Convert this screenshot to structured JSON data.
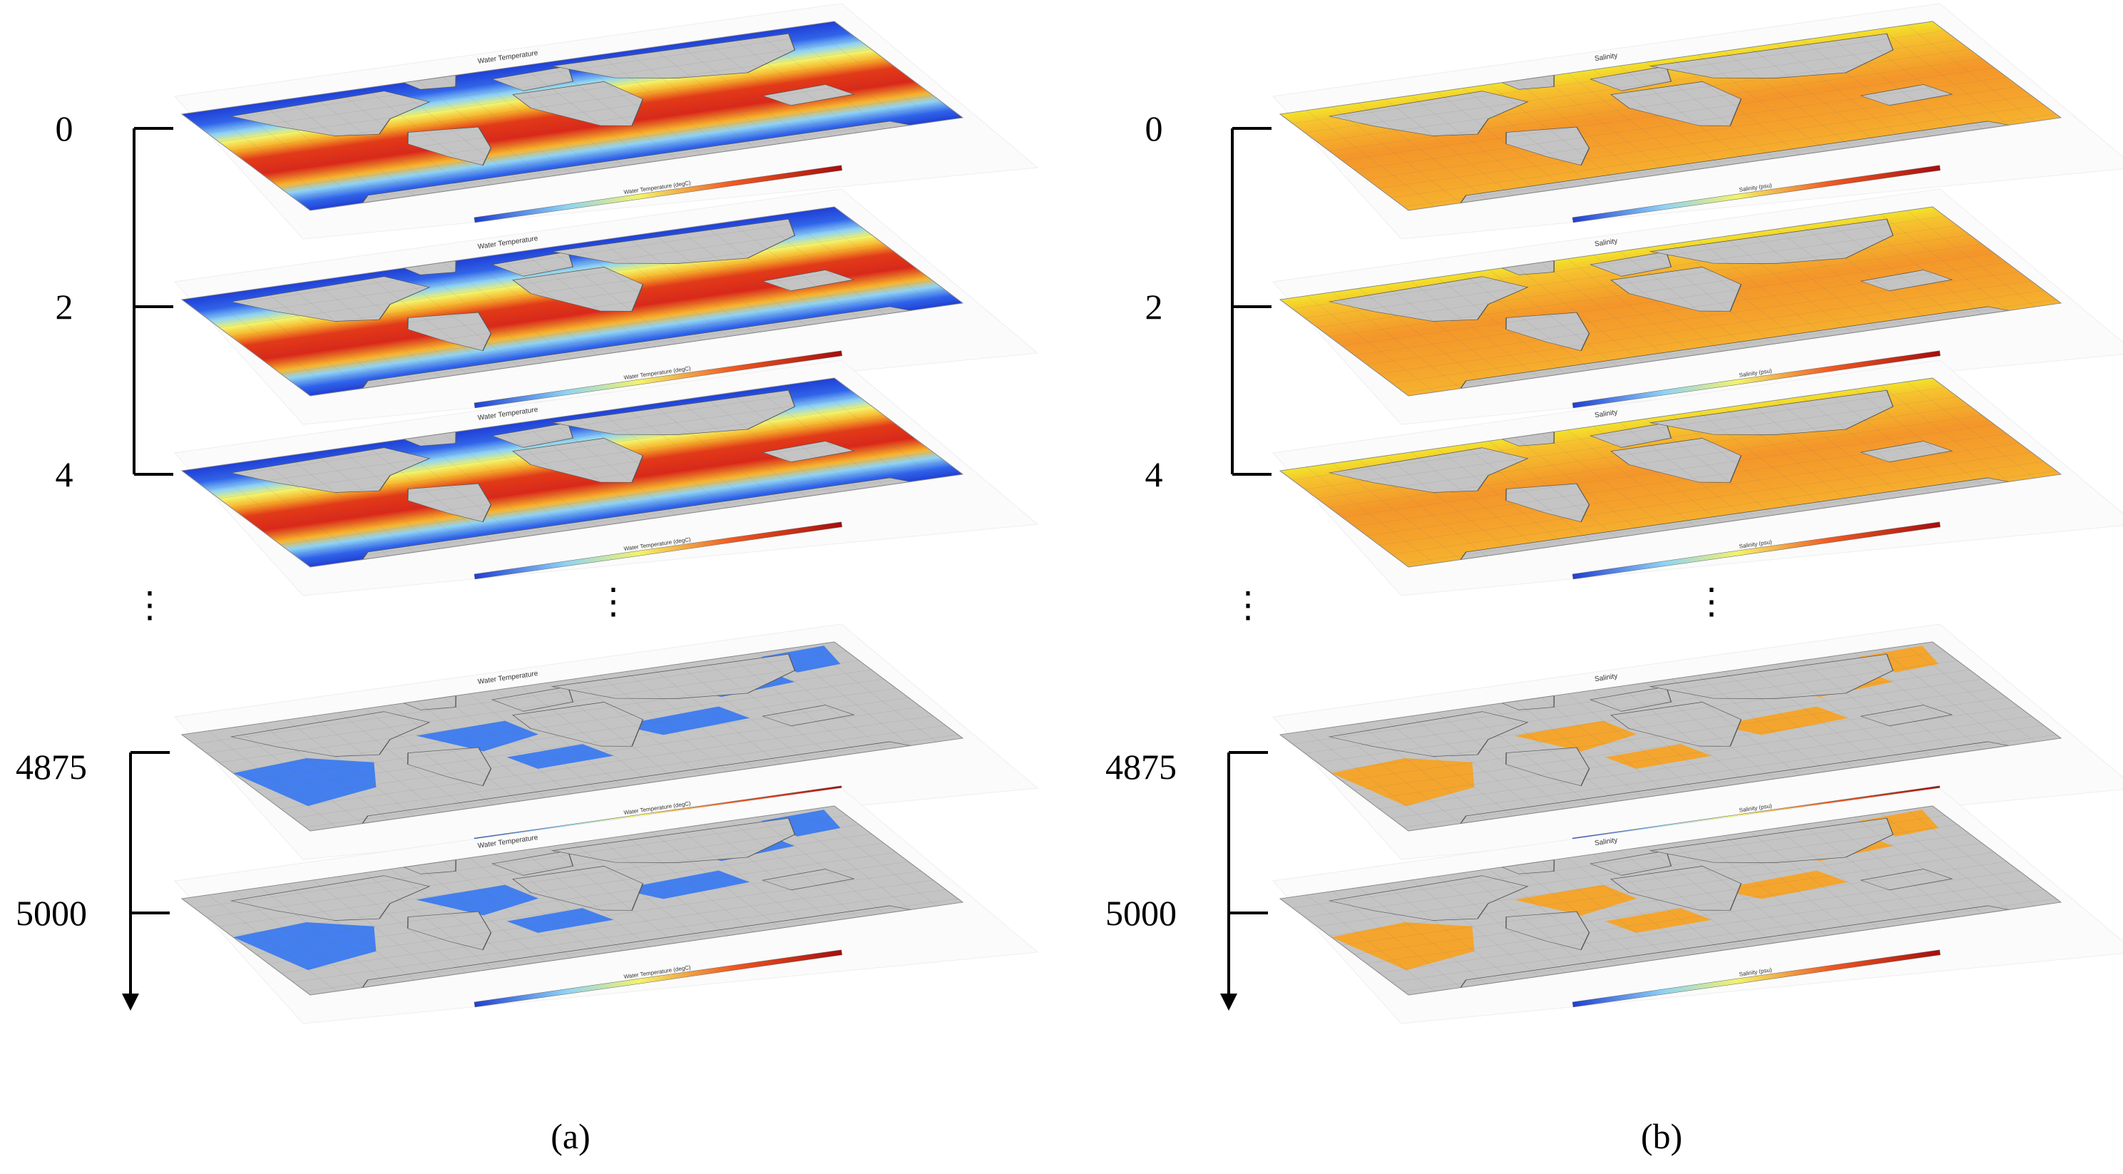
{
  "figure": {
    "panels": [
      {
        "id": "a",
        "caption": "(a)",
        "theme": "temperature",
        "map_title": "Water Temperature",
        "colorbar_label": "Water Temperature (degC)",
        "depth_labels": [
          "0",
          "2",
          "4",
          "4875",
          "5000"
        ],
        "ellipsis": "⋮"
      },
      {
        "id": "b",
        "caption": "(b)",
        "theme": "salinity",
        "map_title": "Salinity",
        "colorbar_label": "Salinity (psu)",
        "depth_labels": [
          "0",
          "2",
          "4",
          "4875",
          "5000"
        ],
        "ellipsis": "⋮"
      }
    ],
    "colors": {
      "temperature_ramp": [
        "#1f3fd6",
        "#3a78f0",
        "#8fd3f5",
        "#f3f36a",
        "#f7b42c",
        "#ee4a1f",
        "#d11a12"
      ],
      "salinity_ramp": [
        "#f3e22a",
        "#f6c12e",
        "#f5a32c",
        "#f08a26"
      ],
      "land": "#c4c4c4",
      "deep_temp": "#3c7bf0",
      "deep_sal": "#f7a325",
      "line": "#000000"
    }
  }
}
